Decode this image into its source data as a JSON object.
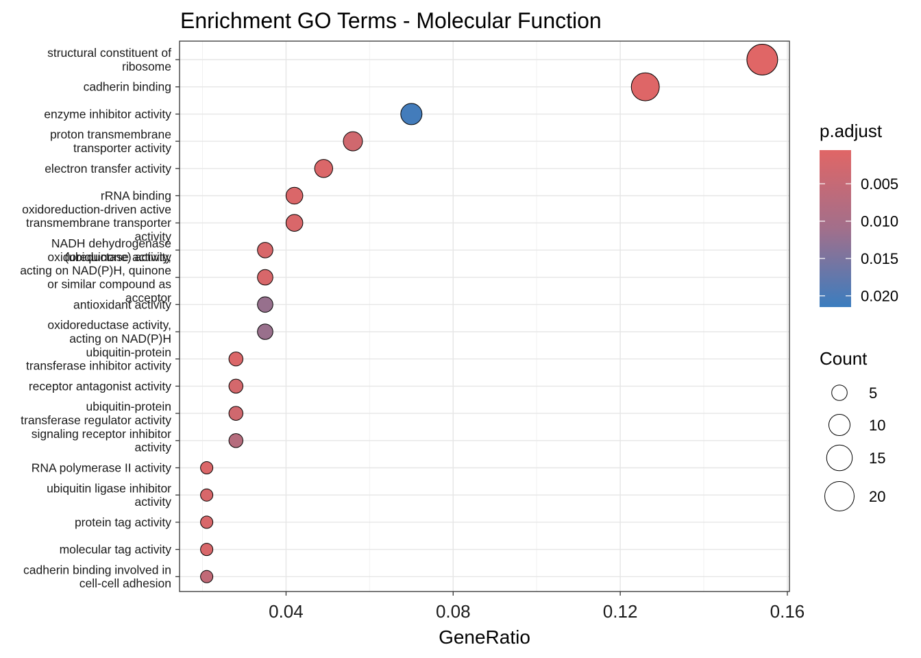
{
  "chart_data": {
    "type": "scatter",
    "title": "Enrichment GO Terms - Molecular Function",
    "xlabel": "GeneRatio",
    "ylabel": "",
    "xlim": [
      0.0145,
      0.1605
    ],
    "x_ticks": [
      {
        "value": 0.04,
        "label": "0.04"
      },
      {
        "value": 0.08,
        "label": "0.08"
      },
      {
        "value": 0.12,
        "label": "0.12"
      },
      {
        "value": 0.16,
        "label": "0.16"
      }
    ],
    "grid": true,
    "terms": [
      {
        "label": [
          "structural constituent of",
          "ribosome"
        ],
        "x": 0.154,
        "count": 22,
        "p_adjust": 0.0005
      },
      {
        "label": [
          "cadherin binding"
        ],
        "x": 0.126,
        "count": 18,
        "p_adjust": 0.0007
      },
      {
        "label": [
          "enzyme inhibitor activity"
        ],
        "x": 0.07,
        "count": 10,
        "p_adjust": 0.0205
      },
      {
        "label": [
          "proton transmembrane",
          "transporter activity"
        ],
        "x": 0.056,
        "count": 8,
        "p_adjust": 0.0025
      },
      {
        "label": [
          "electron transfer activity"
        ],
        "x": 0.049,
        "count": 7,
        "p_adjust": 0.0012
      },
      {
        "label": [
          "rRNA binding"
        ],
        "x": 0.042,
        "count": 6,
        "p_adjust": 0.0013
      },
      {
        "label": [
          "oxidoreduction-driven active",
          "transmembrane transporter",
          "activity"
        ],
        "x": 0.042,
        "count": 6,
        "p_adjust": 0.0014
      },
      {
        "label": [
          "NADH dehydrogenase",
          "(ubiquinone) activity"
        ],
        "x": 0.035,
        "count": 5,
        "p_adjust": 0.0015
      },
      {
        "label": [
          "oxidoreductase activity,",
          "acting on NAD(P)H, quinone",
          "or similar compound as",
          "acceptor"
        ],
        "x": 0.035,
        "count": 5,
        "p_adjust": 0.0015
      },
      {
        "label": [
          "antioxidant activity"
        ],
        "x": 0.035,
        "count": 5,
        "p_adjust": 0.0098
      },
      {
        "label": [
          "oxidoreductase activity,",
          "acting on NAD(P)H"
        ],
        "x": 0.035,
        "count": 5,
        "p_adjust": 0.0095
      },
      {
        "label": [
          "ubiquitin-protein",
          "transferase inhibitor activity"
        ],
        "x": 0.028,
        "count": 4,
        "p_adjust": 0.0012
      },
      {
        "label": [
          "receptor antagonist activity"
        ],
        "x": 0.028,
        "count": 4,
        "p_adjust": 0.002
      },
      {
        "label": [
          "ubiquitin-protein",
          "transferase regulator activity"
        ],
        "x": 0.028,
        "count": 4,
        "p_adjust": 0.0025
      },
      {
        "label": [
          "signaling receptor inhibitor",
          "activity"
        ],
        "x": 0.028,
        "count": 4,
        "p_adjust": 0.006
      },
      {
        "label": [
          "RNA polymerase II activity"
        ],
        "x": 0.021,
        "count": 3,
        "p_adjust": 0.0012
      },
      {
        "label": [
          "ubiquitin ligase inhibitor",
          "activity"
        ],
        "x": 0.021,
        "count": 3,
        "p_adjust": 0.0015
      },
      {
        "label": [
          "protein tag activity"
        ],
        "x": 0.021,
        "count": 3,
        "p_adjust": 0.0015
      },
      {
        "label": [
          "molecular tag activity"
        ],
        "x": 0.021,
        "count": 3,
        "p_adjust": 0.0015
      },
      {
        "label": [
          "cadherin binding involved in",
          "cell-cell adhesion"
        ],
        "x": 0.021,
        "count": 3,
        "p_adjust": 0.0045
      }
    ],
    "legend_color": {
      "title": "p.adjust",
      "range": [
        0.0005,
        0.0215
      ],
      "low_color": "#E06666",
      "high_color": "#3B7DBF",
      "ticks": [
        {
          "value": 0.005,
          "label": "0.005"
        },
        {
          "value": 0.01,
          "label": "0.010"
        },
        {
          "value": 0.015,
          "label": "0.015"
        },
        {
          "value": 0.02,
          "label": "0.020"
        }
      ]
    },
    "legend_size": {
      "title": "Count",
      "items": [
        {
          "value": 5,
          "label": "5"
        },
        {
          "value": 10,
          "label": "10"
        },
        {
          "value": 15,
          "label": "15"
        },
        {
          "value": 20,
          "label": "20"
        }
      ]
    }
  }
}
